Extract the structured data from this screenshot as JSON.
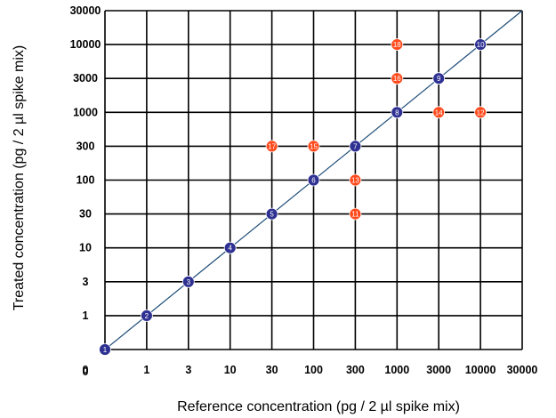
{
  "chart_data": {
    "type": "scatter",
    "title": "",
    "xlabel": "Reference concentration (pg / 2 µl spike mix)",
    "ylabel": "Treated concentration (pg / 2 µl spike mix)",
    "x_ticks": [
      "0",
      "1",
      "3",
      "10",
      "30",
      "100",
      "300",
      "1000",
      "3000",
      "10000",
      "30000"
    ],
    "y_ticks": [
      "0",
      "1",
      "3",
      "10",
      "30",
      "100",
      "300",
      "1000",
      "3000",
      "10000",
      "30000"
    ],
    "grid": true,
    "legend": "none",
    "reference_line": {
      "from": "0",
      "to": "30000",
      "color": "#1f4e79"
    },
    "series": [
      {
        "color": "#2e3192",
        "points": [
          {
            "label": "1",
            "x": "0",
            "y": "0"
          },
          {
            "label": "2",
            "x": "1",
            "y": "1"
          },
          {
            "label": "3",
            "x": "3",
            "y": "3"
          },
          {
            "label": "4",
            "x": "10",
            "y": "10"
          },
          {
            "label": "5",
            "x": "30",
            "y": "30"
          },
          {
            "label": "6",
            "x": "100",
            "y": "100"
          },
          {
            "label": "7",
            "x": "300",
            "y": "300"
          },
          {
            "label": "8",
            "x": "1000",
            "y": "1000"
          },
          {
            "label": "9",
            "x": "3000",
            "y": "3000"
          },
          {
            "label": "10",
            "x": "10000",
            "y": "10000"
          }
        ]
      },
      {
        "color": "#ff4a1c",
        "points": [
          {
            "label": "11",
            "x": "300",
            "y": "30"
          },
          {
            "label": "12",
            "x": "10000",
            "y": "1000"
          },
          {
            "label": "13",
            "x": "300",
            "y": "100"
          },
          {
            "label": "14",
            "x": "3000",
            "y": "1000"
          },
          {
            "label": "15",
            "x": "100",
            "y": "300"
          },
          {
            "label": "16",
            "x": "1000",
            "y": "3000"
          },
          {
            "label": "17",
            "x": "30",
            "y": "300"
          },
          {
            "label": "18",
            "x": "1000",
            "y": "10000"
          }
        ]
      }
    ]
  }
}
